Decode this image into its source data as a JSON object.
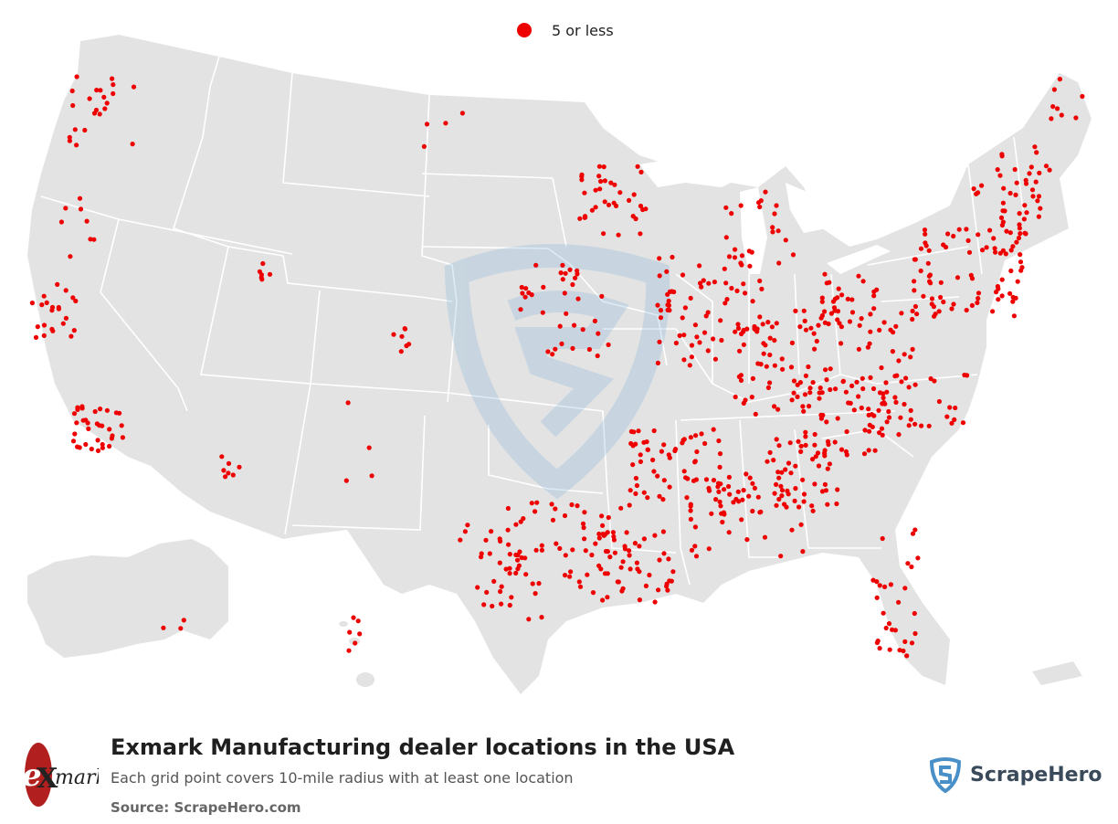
{
  "legend": {
    "label": "5 or less",
    "color": "#ee0000"
  },
  "header": {
    "title": "Exmark Manufacturing dealer locations in the USA",
    "subtitle": "Each grid point covers 10-mile radius with at least one location",
    "source": "Source: ScrapeHero.com"
  },
  "logo": {
    "brand_logo_text": "eXmark",
    "brand_logo_color": "#b21f1f"
  },
  "watermark": {
    "name": "ScrapeHero",
    "icon": "shield-s-icon",
    "color": "#4a90c8"
  },
  "map": {
    "land_color": "#e3e3e3",
    "border_color": "#ffffff",
    "dot_color": "#ee0000"
  }
}
